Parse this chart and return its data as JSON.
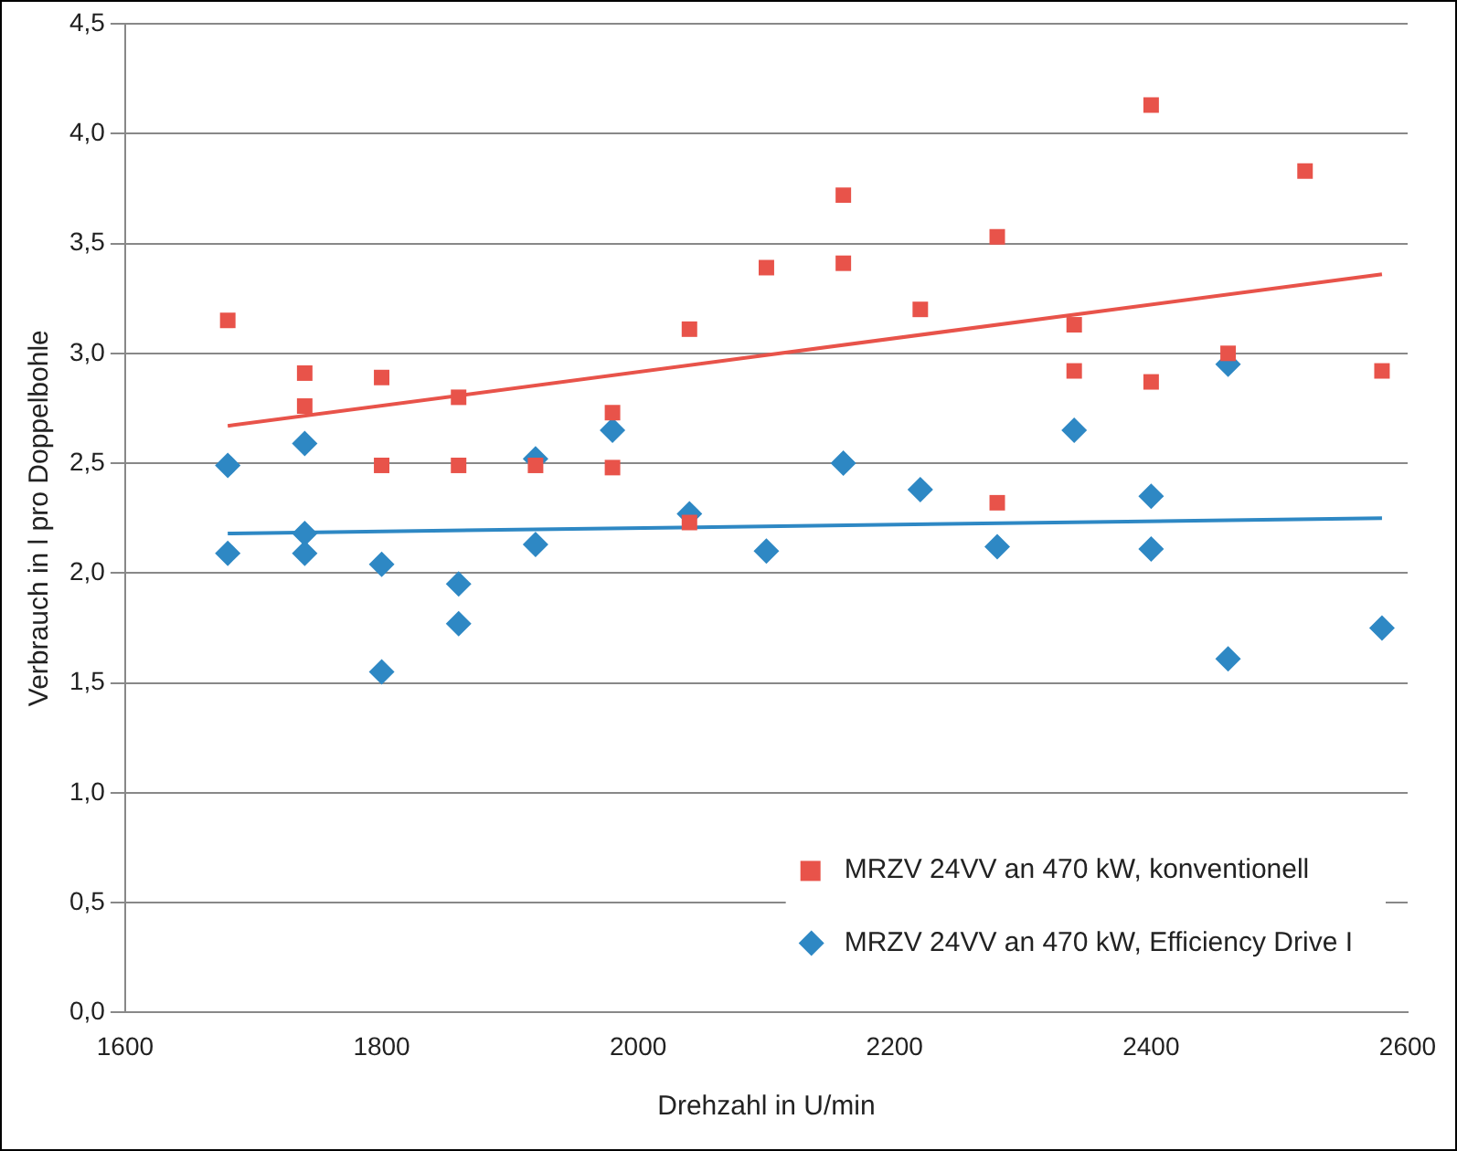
{
  "chart_data": {
    "type": "scatter",
    "xlabel": "Drehzahl in U/min",
    "ylabel": "Verbrauch in l pro Doppelbohle",
    "xlim": [
      1600,
      2600
    ],
    "xticks": [
      1600,
      1800,
      2000,
      2200,
      2400,
      2600
    ],
    "ylim": [
      0,
      4.5
    ],
    "yticks": [
      {
        "value": 0,
        "label": "0,0"
      },
      {
        "value": 0.5,
        "label": "0,5"
      },
      {
        "value": 1,
        "label": "1,0"
      },
      {
        "value": 1.5,
        "label": "1,5"
      },
      {
        "value": 2,
        "label": "2,0"
      },
      {
        "value": 2.5,
        "label": "2,5"
      },
      {
        "value": 3,
        "label": "3,0"
      },
      {
        "value": 3.5,
        "label": "3,5"
      },
      {
        "value": 4,
        "label": "4,0"
      },
      {
        "value": 4.5,
        "label": "4,5"
      }
    ],
    "grid": "y",
    "legend": "bottom right",
    "series": [
      {
        "name": "MRZV 24VV an 470 kW, konventionell",
        "color": "#e8534a",
        "marker": "square",
        "x": [
          1680,
          1740,
          1740,
          1800,
          1800,
          1860,
          1860,
          1920,
          1980,
          1980,
          2040,
          2040,
          2100,
          2160,
          2160,
          2220,
          2280,
          2280,
          2340,
          2340,
          2400,
          2400,
          2460,
          2520,
          2580
        ],
        "values": [
          3.15,
          2.91,
          2.76,
          2.89,
          2.49,
          2.8,
          2.49,
          2.49,
          2.73,
          2.48,
          2.23,
          3.11,
          3.39,
          3.72,
          3.41,
          3.2,
          3.53,
          2.32,
          3.13,
          2.92,
          4.13,
          2.87,
          3.0,
          3.83,
          2.92
        ]
      },
      {
        "name": "MRZV 24VV an 470 kW, Efficiency Drive I",
        "color": "#2e88c4",
        "marker": "diamond",
        "x": [
          1680,
          1680,
          1740,
          1740,
          1740,
          1800,
          1800,
          1860,
          1860,
          1920,
          1920,
          1980,
          2040,
          2100,
          2160,
          2220,
          2280,
          2340,
          2400,
          2400,
          2460,
          2460,
          2580
        ],
        "values": [
          2.49,
          2.09,
          2.59,
          2.18,
          2.09,
          2.04,
          1.55,
          1.95,
          1.77,
          2.52,
          2.13,
          2.65,
          2.27,
          2.1,
          2.5,
          2.38,
          2.12,
          2.65,
          2.35,
          2.11,
          2.95,
          1.61,
          1.75
        ]
      },
      {
        "type": "line",
        "color": "#e8534a",
        "marker": "none",
        "x": [
          1680,
          2580
        ],
        "values": [
          2.67,
          3.36
        ]
      },
      {
        "type": "line",
        "color": "#2e88c4",
        "marker": "none",
        "x": [
          1680,
          2580
        ],
        "values": [
          2.18,
          2.25
        ]
      }
    ]
  }
}
